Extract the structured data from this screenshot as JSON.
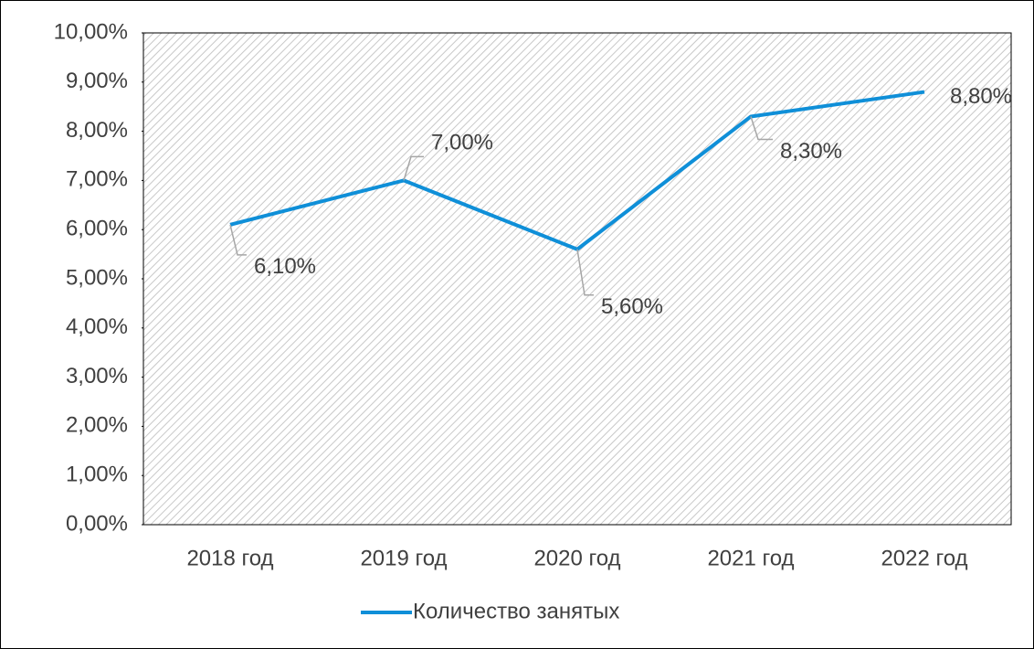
{
  "chart_data": {
    "type": "line",
    "categories": [
      "2018 год",
      "2019 год",
      "2020 год",
      "2021 год",
      "2022 год"
    ],
    "series": [
      {
        "name": "Количество занятых",
        "color": "#0f8fd8",
        "values": [
          6.1,
          7.0,
          5.6,
          8.3,
          8.8
        ],
        "value_labels": [
          "6,10%",
          "7,00%",
          "5,60%",
          "8,30%",
          "8,80%"
        ]
      }
    ],
    "ylim": [
      0,
      10
    ],
    "yticks": [
      {
        "value": 0,
        "label": "0,00%"
      },
      {
        "value": 1,
        "label": "1,00%"
      },
      {
        "value": 2,
        "label": "2,00%"
      },
      {
        "value": 3,
        "label": "3,00%"
      },
      {
        "value": 4,
        "label": "4,00%"
      },
      {
        "value": 5,
        "label": "5,00%"
      },
      {
        "value": 6,
        "label": "6,00%"
      },
      {
        "value": 7,
        "label": "7,00%"
      },
      {
        "value": 8,
        "label": "8,00%"
      },
      {
        "value": 9,
        "label": "9,00%"
      },
      {
        "value": 10,
        "label": "10,00%"
      }
    ],
    "legend": "bottom"
  }
}
